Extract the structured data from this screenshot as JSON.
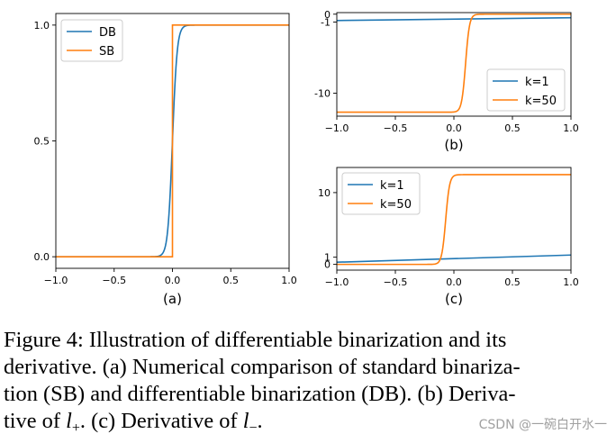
{
  "chart_data": [
    {
      "id": "a",
      "type": "line",
      "panel_label": "(a)",
      "xlim": [
        -1.0,
        1.0
      ],
      "ylim": [
        -0.05,
        1.05
      ],
      "xticks": [
        -1.0,
        -0.5,
        0.0,
        0.5,
        1.0
      ],
      "xtick_labels": [
        "−1.0",
        "−0.5",
        "0.0",
        "0.5",
        "1.0"
      ],
      "yticks": [
        0.0,
        0.5,
        1.0
      ],
      "ytick_labels": [
        "0.0",
        "0.5",
        "1.0"
      ],
      "legend": "top-left",
      "series": [
        {
          "name": "DB",
          "color": "#1f77b4",
          "function": "sigmoid",
          "k": 50,
          "x_range": [
            -1,
            1
          ]
        },
        {
          "name": "SB",
          "color": "#ff7f0e",
          "function": "step",
          "threshold": 0.0,
          "x_range": [
            -1,
            1
          ]
        }
      ]
    },
    {
      "id": "b",
      "type": "line",
      "panel_label": "(b)",
      "xlim": [
        -1.0,
        1.0
      ],
      "ylim": [
        -12.9,
        0.2
      ],
      "xticks": [
        -1.0,
        -0.5,
        0.0,
        0.5,
        1.0
      ],
      "xtick_labels": [
        "−1.0",
        "−0.5",
        "0.0",
        "0.5",
        "1.0"
      ],
      "yticks": [
        0,
        -1,
        -10
      ],
      "ytick_labels": [
        "0",
        "-1",
        "-10"
      ],
      "legend": "bottom-right",
      "series": [
        {
          "name": "k=1",
          "color": "#1f77b4",
          "line_points": [
            [
              -1.0,
              -0.8
            ],
            [
              1.0,
              -0.45
            ]
          ]
        },
        {
          "name": "k=50",
          "color": "#ff7f0e",
          "function": "sigmoid_transition",
          "center": 0.1,
          "k": 60,
          "low": -12.4,
          "high": 0.0
        }
      ]
    },
    {
      "id": "c",
      "type": "line",
      "panel_label": "(c)",
      "xlim": [
        -1.0,
        1.0
      ],
      "ylim": [
        -0.8,
        13.5
      ],
      "xticks": [
        -1.0,
        -0.5,
        0.0,
        0.5,
        1.0
      ],
      "xtick_labels": [
        "−1.0",
        "−0.5",
        "0.0",
        "0.5",
        "1.0"
      ],
      "yticks": [
        0,
        1,
        10
      ],
      "ytick_labels": [
        "0",
        "1",
        "10"
      ],
      "legend": "top-left",
      "series": [
        {
          "name": "k=1",
          "color": "#1f77b4",
          "line_points": [
            [
              -1.0,
              0.3
            ],
            [
              1.0,
              1.3
            ]
          ]
        },
        {
          "name": "k=50",
          "color": "#ff7f0e",
          "function": "sigmoid_transition",
          "center": -0.07,
          "k": 60,
          "low": 0.0,
          "high": 12.5
        }
      ]
    }
  ],
  "caption": {
    "line1": "Figure 4: Illustration of differentiable binarization and its",
    "line2": "derivative. (a) Numerical comparison of standard binariza-",
    "line3": "tion (SB) and differentiable binarization (DB). (b) Deriva-",
    "line4_a": "tive of ",
    "line4_var1": "l",
    "line4_sub1": "+",
    "line4_b": ". (c) Derivative of ",
    "line4_var2": "l",
    "line4_sub2": "−",
    "line4_c": "."
  },
  "watermark": "CSDN @一碗白开水一"
}
